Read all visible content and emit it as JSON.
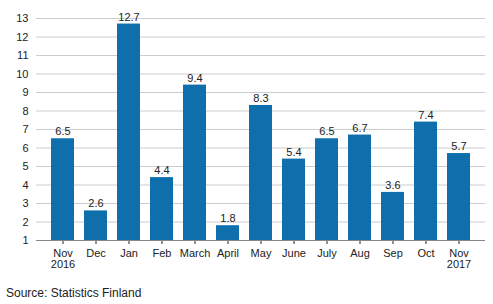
{
  "chart_data": {
    "type": "bar",
    "caption": "Source: Statistics Finland",
    "categories": [
      "Nov\n2016",
      "Dec",
      "Jan",
      "Feb",
      "March",
      "April",
      "May",
      "June",
      "July",
      "Aug",
      "Sep",
      "Oct",
      "Nov\n2017"
    ],
    "values": [
      6.5,
      2.6,
      12.7,
      4.4,
      9.4,
      1.8,
      8.3,
      5.4,
      6.5,
      6.7,
      3.6,
      7.4,
      5.7
    ],
    "color": "#0f6fac",
    "ylim": [
      1,
      13
    ],
    "yticks": [
      1,
      2,
      3,
      4,
      5,
      6,
      7,
      8,
      9,
      10,
      11,
      12,
      13
    ],
    "grid": true,
    "data_labels": true
  }
}
